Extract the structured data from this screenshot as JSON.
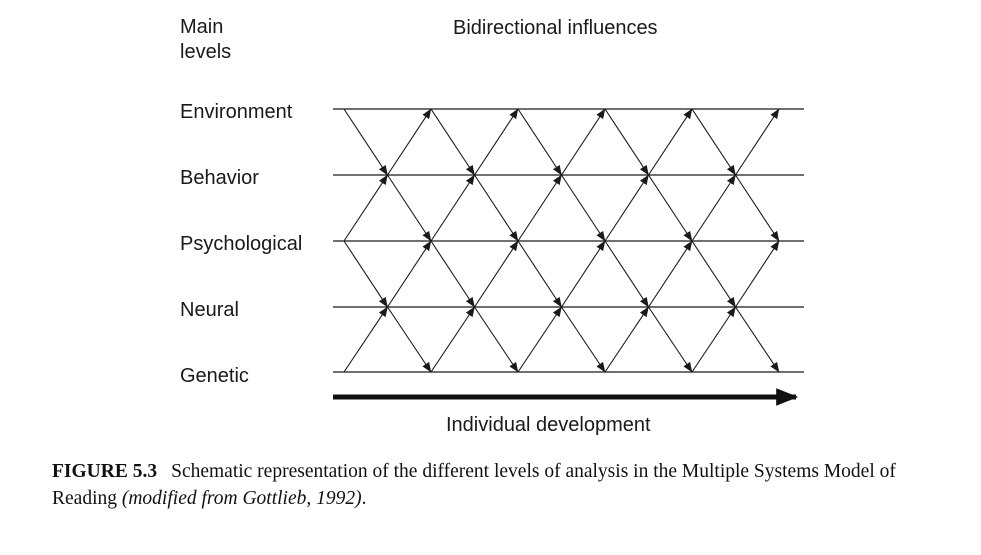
{
  "header": {
    "levels_title_line1": "Main",
    "levels_title_line2": "levels",
    "influences_title": "Bidirectional influences"
  },
  "levels": [
    {
      "label": "Environment"
    },
    {
      "label": "Behavior"
    },
    {
      "label": "Psychological"
    },
    {
      "label": "Neural"
    },
    {
      "label": "Genetic"
    }
  ],
  "axis": {
    "label": "Individual development"
  },
  "caption": {
    "number": "FIGURE 5.3",
    "text": "Schematic representation of the different levels of analysis in the Multiple Systems Model of Reading",
    "reference": "(modified from Gottlieb, 1992)",
    "end": "."
  },
  "colors": {
    "line": "#1a1a1a",
    "text": "#1a1a1a",
    "background": "#ffffff"
  }
}
